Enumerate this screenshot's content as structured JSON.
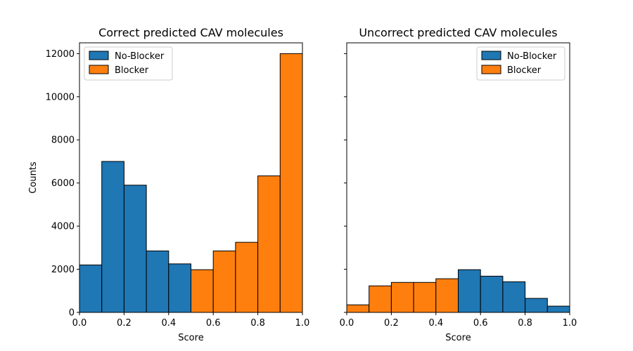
{
  "chart_data": [
    {
      "type": "bar",
      "title": "Correct predicted CAV molecules",
      "xlabel": "Score",
      "ylabel": "Counts",
      "xlim": [
        0.0,
        1.0
      ],
      "ylim": [
        0,
        12500
      ],
      "xticks": [
        "0.0",
        "0.2",
        "0.4",
        "0.6",
        "0.8",
        "1.0"
      ],
      "yticks": [
        "0",
        "2000",
        "4000",
        "6000",
        "8000",
        "10000",
        "12000"
      ],
      "legend_position": "top-left",
      "bin_edges": [
        0.0,
        0.1,
        0.2,
        0.3,
        0.4,
        0.5,
        0.6,
        0.7,
        0.8,
        0.9,
        1.0
      ],
      "series": [
        {
          "name": "No-Blocker",
          "color": "#1f77b4",
          "values": [
            2200,
            7000,
            5900,
            2850,
            2250,
            0,
            0,
            0,
            0,
            0
          ]
        },
        {
          "name": "Blocker",
          "color": "#ff7f0e",
          "values": [
            0,
            0,
            0,
            0,
            0,
            1980,
            2850,
            3250,
            6330,
            12000
          ]
        }
      ]
    },
    {
      "type": "bar",
      "title": "Uncorrect predicted CAV molecules",
      "xlabel": "Score",
      "ylabel": "",
      "xlim": [
        0.0,
        1.0
      ],
      "ylim": [
        0,
        12500
      ],
      "xticks": [
        "0.0",
        "0.2",
        "0.4",
        "0.6",
        "0.8",
        "1.0"
      ],
      "yticks": [],
      "legend_position": "top-right",
      "bin_edges": [
        0.0,
        0.1,
        0.2,
        0.3,
        0.4,
        0.5,
        0.6,
        0.7,
        0.8,
        0.9,
        1.0
      ],
      "series": [
        {
          "name": "No-Blocker",
          "color": "#1f77b4",
          "values": [
            0,
            0,
            0,
            0,
            0,
            1980,
            1680,
            1420,
            650,
            290
          ]
        },
        {
          "name": "Blocker",
          "color": "#ff7f0e",
          "values": [
            350,
            1230,
            1390,
            1390,
            1560,
            0,
            0,
            0,
            0,
            0
          ]
        }
      ]
    }
  ]
}
